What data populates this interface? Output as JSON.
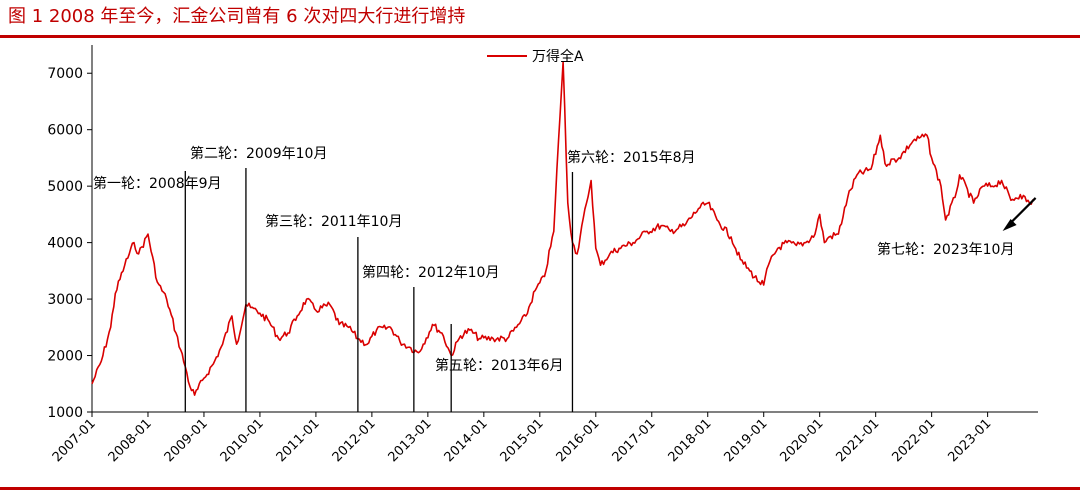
{
  "figure_title": "图 1 2008 年至今，汇金公司曾有 6 次对四大行进行增持",
  "colors": {
    "brand_red": "#c00000",
    "series_line": "#d90000",
    "axis": "#000000"
  },
  "chart_data": {
    "type": "line",
    "title": "",
    "xlabel": "",
    "ylabel": "",
    "ylim": [
      1000,
      7500
    ],
    "yticks": [
      1000,
      2000,
      3000,
      4000,
      5000,
      6000,
      7000
    ],
    "xticks": [
      "2007-01",
      "2008-01",
      "2009-01",
      "2010-01",
      "2011-01",
      "2012-01",
      "2013-01",
      "2014-01",
      "2015-01",
      "2016-01",
      "2017-01",
      "2018-01",
      "2019-01",
      "2020-01",
      "2021-01",
      "2022-01",
      "2023-01"
    ],
    "legend": {
      "position": "top-center",
      "entries": [
        "万得全A"
      ]
    },
    "grid": false,
    "series": [
      {
        "name": "万得全A",
        "x": [
          "2007-01",
          "2007-03",
          "2007-05",
          "2007-06",
          "2007-08",
          "2007-10",
          "2007-11",
          "2008-01",
          "2008-03",
          "2008-05",
          "2008-07",
          "2008-09",
          "2008-10",
          "2008-11",
          "2009-01",
          "2009-03",
          "2009-05",
          "2009-07",
          "2009-08",
          "2009-10",
          "2009-11",
          "2010-01",
          "2010-03",
          "2010-05",
          "2010-07",
          "2010-09",
          "2010-11",
          "2011-01",
          "2011-04",
          "2011-06",
          "2011-08",
          "2011-10",
          "2011-12",
          "2012-02",
          "2012-05",
          "2012-07",
          "2012-09",
          "2012-11",
          "2012-12",
          "2013-02",
          "2013-04",
          "2013-06",
          "2013-08",
          "2013-10",
          "2013-12",
          "2014-03",
          "2014-06",
          "2014-08",
          "2014-10",
          "2014-12",
          "2015-02",
          "2015-04",
          "2015-05",
          "2015-06",
          "2015-07",
          "2015-08",
          "2015-09",
          "2015-11",
          "2015-12",
          "2016-01",
          "2016-02",
          "2016-04",
          "2016-06",
          "2016-09",
          "2016-12",
          "2017-03",
          "2017-05",
          "2017-08",
          "2017-11",
          "2018-01",
          "2018-03",
          "2018-06",
          "2018-08",
          "2018-10",
          "2018-12",
          "2019-01",
          "2019-02",
          "2019-04",
          "2019-06",
          "2019-08",
          "2019-10",
          "2019-12",
          "2020-01",
          "2020-02",
          "2020-03",
          "2020-05",
          "2020-07",
          "2020-09",
          "2020-12",
          "2021-02",
          "2021-03",
          "2021-06",
          "2021-09",
          "2021-12",
          "2022-01",
          "2022-03",
          "2022-04",
          "2022-06",
          "2022-07",
          "2022-10",
          "2022-12",
          "2023-02",
          "2023-04",
          "2023-06",
          "2023-08",
          "2023-10",
          "2023-11"
        ],
        "values": [
          1500,
          1900,
          2500,
          3100,
          3600,
          4000,
          3800,
          4150,
          3300,
          3000,
          2400,
          1800,
          1450,
          1300,
          1600,
          1850,
          2200,
          2700,
          2200,
          2900,
          2850,
          2750,
          2600,
          2300,
          2400,
          2700,
          3000,
          2800,
          2900,
          2550,
          2500,
          2300,
          2200,
          2450,
          2500,
          2250,
          2150,
          2050,
          2200,
          2550,
          2400,
          2000,
          2350,
          2450,
          2300,
          2300,
          2300,
          2500,
          2700,
          3150,
          3400,
          4200,
          5800,
          7200,
          4700,
          4000,
          3800,
          4700,
          5100,
          3900,
          3600,
          3800,
          3900,
          4000,
          4200,
          4300,
          4200,
          4300,
          4600,
          4700,
          4400,
          4100,
          3700,
          3500,
          3300,
          3250,
          3600,
          3900,
          4000,
          3950,
          4000,
          4150,
          4500,
          4000,
          4100,
          4150,
          4800,
          5200,
          5300,
          5900,
          5400,
          5500,
          5800,
          5900,
          5500,
          5000,
          4400,
          4800,
          5200,
          4700,
          5000,
          5000,
          5100,
          4750,
          4850,
          4700,
          4750
        ]
      }
    ],
    "annotations": [
      {
        "label": "第一轮：2008年9月",
        "x": "2008-09"
      },
      {
        "label": "第二轮：2009年10月",
        "x": "2009-10"
      },
      {
        "label": "第三轮：2011年10月",
        "x": "2011-10"
      },
      {
        "label": "第四轮：2012年10月",
        "x": "2012-10"
      },
      {
        "label": "第五轮：2013年6月",
        "x": "2013-06"
      },
      {
        "label": "第六轮：2015年8月",
        "x": "2015-08"
      },
      {
        "label": "第七轮：2023年10月",
        "x": "2023-10"
      }
    ]
  }
}
